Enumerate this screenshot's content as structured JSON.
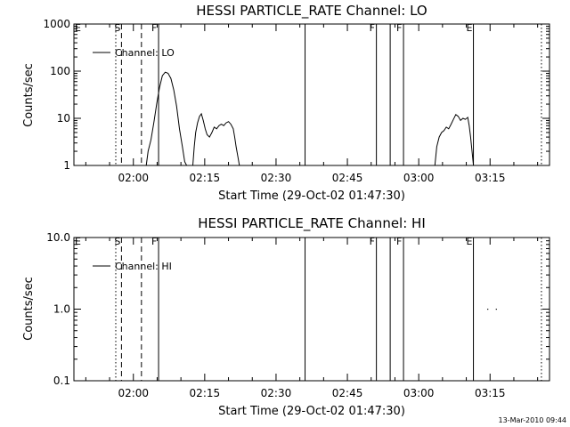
{
  "footer": {
    "timestamp": "13-Mar-2010 09:44"
  },
  "chart_data": [
    {
      "type": "line",
      "title": "HESSI PARTICLE_RATE Channel: LO",
      "xlabel": "Start Time (29-Oct-02 01:47:30)",
      "ylabel": "Counts/sec",
      "y_scale": "log",
      "ylim": [
        1,
        1000
      ],
      "xlim_minutes": [
        0,
        100
      ],
      "x_ticks": [
        {
          "label": "02:00",
          "minutes": 12.5
        },
        {
          "label": "02:15",
          "minutes": 27.5
        },
        {
          "label": "02:30",
          "minutes": 42.5
        },
        {
          "label": "02:45",
          "minutes": 57.5
        },
        {
          "label": "03:00",
          "minutes": 72.5
        },
        {
          "label": "03:15",
          "minutes": 87.5
        }
      ],
      "y_ticks": [
        {
          "label": "1",
          "value": 1
        },
        {
          "label": "10",
          "value": 10
        },
        {
          "label": "100",
          "value": 100
        },
        {
          "label": "1000",
          "value": 1000
        }
      ],
      "legend": {
        "label": "Channel: LO",
        "position": "top-left"
      },
      "series": [
        {
          "name": "Channel: LO",
          "segments": [
            [
              [
                15.2,
                1.0
              ],
              [
                15.6,
                2.0
              ],
              [
                16.2,
                3.5
              ],
              [
                16.8,
                8
              ],
              [
                17.4,
                20
              ],
              [
                18.0,
                45
              ],
              [
                18.6,
                80
              ],
              [
                19.2,
                95
              ],
              [
                19.8,
                90
              ],
              [
                20.4,
                70
              ],
              [
                21.0,
                40
              ],
              [
                21.6,
                18
              ],
              [
                22.2,
                6
              ],
              [
                22.8,
                2.5
              ],
              [
                23.3,
                1.2
              ],
              [
                23.7,
                1.0
              ]
            ],
            [
              [
                25.0,
                1.0
              ],
              [
                25.3,
                2.5
              ],
              [
                25.6,
                5
              ],
              [
                26.0,
                8
              ],
              [
                26.4,
                11
              ],
              [
                26.8,
                12.5
              ],
              [
                27.2,
                9
              ],
              [
                27.6,
                6
              ],
              [
                28.0,
                4.5
              ],
              [
                28.5,
                4
              ],
              [
                29.0,
                5
              ],
              [
                29.5,
                6.5
              ],
              [
                30.0,
                6
              ],
              [
                30.5,
                7
              ],
              [
                31.0,
                7.5
              ],
              [
                31.5,
                7
              ],
              [
                32.0,
                8
              ],
              [
                32.5,
                8.5
              ],
              [
                33.0,
                7.5
              ],
              [
                33.5,
                6
              ],
              [
                33.8,
                4
              ],
              [
                34.1,
                2.5
              ],
              [
                34.5,
                1.5
              ],
              [
                34.8,
                1.0
              ]
            ],
            [
              [
                75.9,
                1.0
              ],
              [
                76.3,
                2.5
              ],
              [
                76.8,
                4
              ],
              [
                77.3,
                5
              ],
              [
                77.8,
                5.5
              ],
              [
                78.3,
                6.5
              ],
              [
                78.8,
                6
              ],
              [
                79.3,
                7.5
              ],
              [
                79.8,
                9.5
              ],
              [
                80.3,
                12
              ],
              [
                80.8,
                11
              ],
              [
                81.3,
                9
              ],
              [
                81.8,
                10
              ],
              [
                82.3,
                9.5
              ],
              [
                82.8,
                10.5
              ],
              [
                83.1,
                7
              ],
              [
                83.4,
                4
              ],
              [
                83.7,
                2
              ],
              [
                84.0,
                1.0
              ]
            ]
          ]
        }
      ],
      "event_lines": [
        {
          "label": "",
          "minutes": 8.8,
          "style": "dotted"
        },
        {
          "label": "S",
          "minutes": 10.0,
          "style": "dashed"
        },
        {
          "label": "",
          "minutes": 14.2,
          "style": "dashed"
        },
        {
          "label": "F",
          "minutes": 17.8,
          "style": "solid"
        },
        {
          "label": "",
          "minutes": 48.6,
          "style": "solid"
        },
        {
          "label": "F",
          "minutes": 63.6,
          "style": "solid"
        },
        {
          "label": "",
          "minutes": 66.5,
          "style": "solid"
        },
        {
          "label": "F",
          "minutes": 69.3,
          "style": "solid"
        },
        {
          "label": "E",
          "minutes": 84.0,
          "style": "solid"
        },
        {
          "label": "",
          "minutes": 98.3,
          "style": "dotted"
        }
      ],
      "edge_markers": [
        {
          "label": "E",
          "position": "left"
        }
      ]
    },
    {
      "type": "line",
      "title": "HESSI PARTICLE_RATE Channel: HI",
      "xlabel": "Start Time (29-Oct-02 01:47:30)",
      "ylabel": "Counts/sec",
      "y_scale": "log",
      "ylim": [
        0.1,
        10.0
      ],
      "xlim_minutes": [
        0,
        100
      ],
      "x_ticks": [
        {
          "label": "02:00",
          "minutes": 12.5
        },
        {
          "label": "02:15",
          "minutes": 27.5
        },
        {
          "label": "02:30",
          "minutes": 42.5
        },
        {
          "label": "02:45",
          "minutes": 57.5
        },
        {
          "label": "03:00",
          "minutes": 72.5
        },
        {
          "label": "03:15",
          "minutes": 87.5
        }
      ],
      "y_ticks": [
        {
          "label": "0.1",
          "value": 0.1
        },
        {
          "label": "1.0",
          "value": 1.0
        },
        {
          "label": "10.0",
          "value": 10.0
        }
      ],
      "legend": {
        "label": "Channel: HI",
        "position": "top-left"
      },
      "series": [
        {
          "name": "Channel: HI",
          "points": [
            [
              87.0,
              1.0
            ],
            [
              88.8,
              1.0
            ]
          ]
        }
      ],
      "event_lines": [
        {
          "label": "",
          "minutes": 8.8,
          "style": "dotted"
        },
        {
          "label": "S",
          "minutes": 10.0,
          "style": "dashed"
        },
        {
          "label": "",
          "minutes": 14.2,
          "style": "dashed"
        },
        {
          "label": "F",
          "minutes": 17.8,
          "style": "solid"
        },
        {
          "label": "",
          "minutes": 48.6,
          "style": "solid"
        },
        {
          "label": "F",
          "minutes": 63.6,
          "style": "solid"
        },
        {
          "label": "",
          "minutes": 66.5,
          "style": "solid"
        },
        {
          "label": "F",
          "minutes": 69.3,
          "style": "solid"
        },
        {
          "label": "E",
          "minutes": 84.0,
          "style": "solid"
        },
        {
          "label": "",
          "minutes": 98.3,
          "style": "dotted"
        }
      ],
      "edge_markers": [
        {
          "label": "E",
          "position": "left"
        }
      ]
    }
  ]
}
